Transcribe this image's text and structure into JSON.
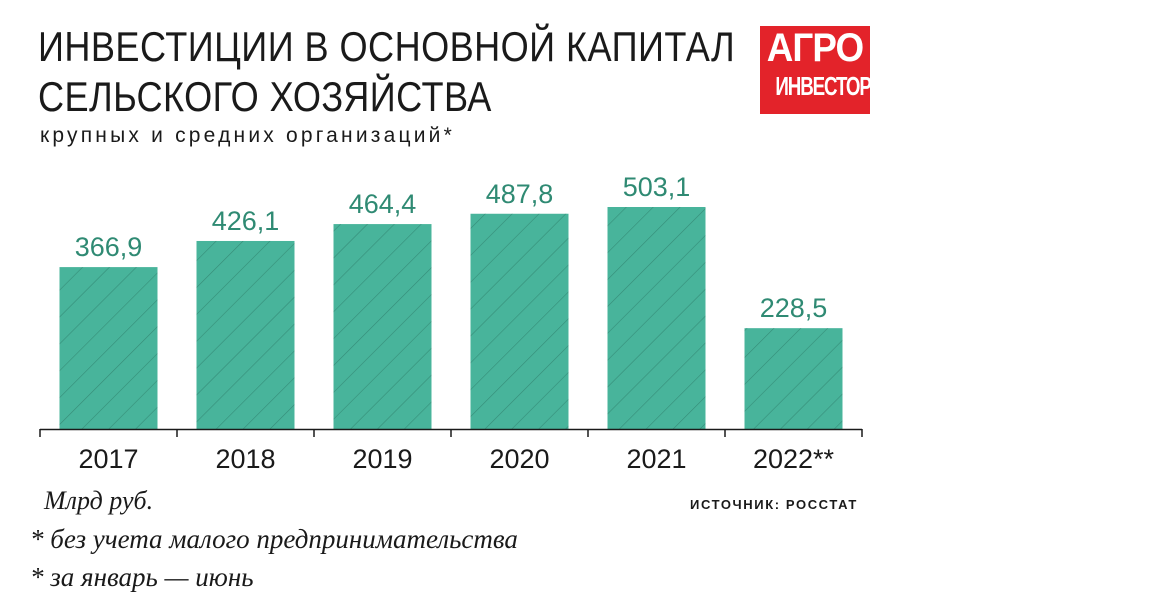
{
  "header": {
    "title_line1": "ИНВЕСТИЦИИ В ОСНОВНОЙ КАПИТАЛ",
    "title_line2": "СЕЛЬСКОГО ХОЗЯЙСТВА",
    "subtitle": "крупных и средних организаций*"
  },
  "logo": {
    "line1": "АГРО",
    "line2": "ИНВЕСТОР"
  },
  "footer": {
    "unit": "Млрд руб.",
    "source": "ИСТОЧНИК: РОССТАТ",
    "note1": "* без учета малого предпринимательства",
    "note2": "* за январь — июнь"
  },
  "colors": {
    "bar": "#48b49b",
    "hatch": "#2f7f6c",
    "value_text": "#2f8a73",
    "logo_bg": "#e3232a"
  },
  "chart_data": {
    "type": "bar",
    "categories": [
      "2017",
      "2018",
      "2019",
      "2020",
      "2021",
      "2022**"
    ],
    "values": [
      366.9,
      426.1,
      464.4,
      487.8,
      503.1,
      228.5
    ],
    "value_labels": [
      "366,9",
      "426,1",
      "464,4",
      "487,8",
      "503,1",
      "228,5"
    ],
    "ylim": [
      0,
      503.1
    ],
    "grid": false,
    "legend": "none"
  }
}
